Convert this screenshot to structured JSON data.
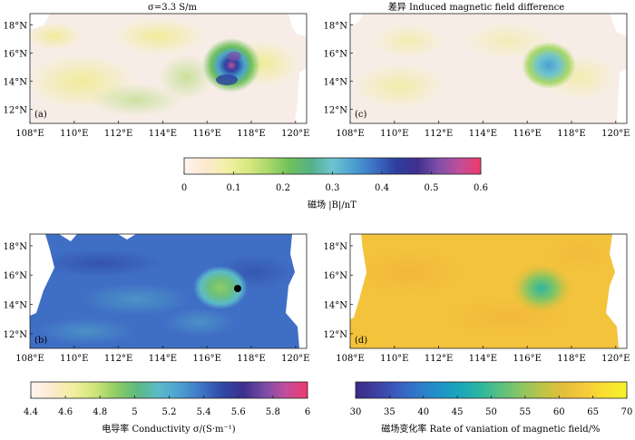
{
  "figure": {
    "colors": {
      "cmap_b": [
        "#fff3f0",
        "#fbe9cf",
        "#f3f0a6",
        "#d9e880",
        "#a9d869",
        "#6fc05b",
        "#54b08a",
        "#6fc3cf",
        "#4aa0cf",
        "#3b6fc4",
        "#2d3f9f",
        "#3f2f8e",
        "#7f4fa8",
        "#c04f9a",
        "#f03a6b"
      ],
      "cmap_sigma": [
        "#fff3f0",
        "#fbeacd",
        "#f2ef9e",
        "#cfe57a",
        "#8fcd64",
        "#5cb97f",
        "#5bbac9",
        "#4ba0d0",
        "#3f76c6",
        "#2f48a6",
        "#3d2f8e",
        "#7a4ca6",
        "#c24e9b",
        "#f0386c"
      ],
      "cmap_rate": [
        "#3b2a86",
        "#3e3fa3",
        "#3a5cc0",
        "#2f7acb",
        "#1f92c8",
        "#1aa6b8",
        "#2db69f",
        "#5cc07f",
        "#8fc560",
        "#bfc446",
        "#e3bf3a",
        "#f8c93a",
        "#f9e131",
        "#f5f22b"
      ],
      "land": "#ffffff",
      "sea_b_bg": "#f7ede6",
      "sea_sigma_bg": "#3f6ec5",
      "sea_rate_bg": "#f3c33c"
    },
    "xticks": [
      "108°E",
      "110°E",
      "112°E",
      "114°E",
      "116°E",
      "118°E",
      "120°E"
    ],
    "yticks": [
      "12°N",
      "14°N",
      "16°N",
      "18°N"
    ],
    "panels": [
      {
        "id": "a",
        "label": "(a)",
        "title": "σ=3.3 S/m"
      },
      {
        "id": "c",
        "label": "(c)",
        "title": "差异 Induced magnetic field difference"
      },
      {
        "id": "b",
        "label": "(b)",
        "title": ""
      },
      {
        "id": "d",
        "label": "(d)",
        "title": ""
      }
    ]
  },
  "chart_data": [
    {
      "type": "heatmap",
      "panel": "(a)",
      "title": "σ=3.3 S/m",
      "xlim": [
        108,
        120.5
      ],
      "ylim": [
        11,
        18.8
      ],
      "colorbar": "磁场 |B|/nT",
      "feature": "eddy centered near 117.5°E, 15.4°N with peak |B| ≈ 0.55 nT"
    },
    {
      "type": "heatmap",
      "panel": "(c)",
      "title": "差异 Induced magnetic field difference",
      "xlim": [
        108,
        120.5
      ],
      "ylim": [
        11,
        18.8
      ],
      "colorbar": "磁场 |B|/nT",
      "feature": "difference peak ≈ 0.3 nT near 117.5°E, 15.4°N"
    },
    {
      "type": "heatmap",
      "panel": "(b)",
      "xlim": [
        108,
        120.5
      ],
      "ylim": [
        11,
        18.8
      ],
      "colorbar": "电导率 Conductivity σ/(S·m⁻¹)",
      "feature": "conductivity ≈ 5.4–5.6 background, ≈ 4.9 in eddy core near 117°E, 15.5°N"
    },
    {
      "type": "heatmap",
      "panel": "(d)",
      "xlim": [
        108,
        120.5
      ],
      "ylim": [
        11,
        18.8
      ],
      "colorbar": "磁场变化率 Rate of vaniation of magnetic field/%",
      "feature": "rate ≈ 60–65% background, ≈ 45% near 116.8°E, 15.2°N"
    }
  ],
  "colorbars": [
    {
      "id": "b",
      "label": "磁场 |B|/nT",
      "ticks": [
        "0",
        "0.1",
        "0.2",
        "0.3",
        "0.4",
        "0.5",
        "0.6"
      ],
      "range": [
        0,
        0.6
      ]
    },
    {
      "id": "sigma",
      "label": "电导率 Conductivity σ/(S·m⁻¹)",
      "ticks": [
        "4.4",
        "4.6",
        "4.8",
        "5",
        "5.2",
        "5.4",
        "5.6",
        "5.8",
        "6"
      ],
      "range": [
        4.4,
        6
      ]
    },
    {
      "id": "rate",
      "label": "磁场变化率 Rate of vaniation of magnetic field/%",
      "ticks": [
        "30",
        "35",
        "40",
        "45",
        "50",
        "55",
        "60",
        "65",
        "70"
      ],
      "range": [
        30,
        70
      ]
    }
  ]
}
